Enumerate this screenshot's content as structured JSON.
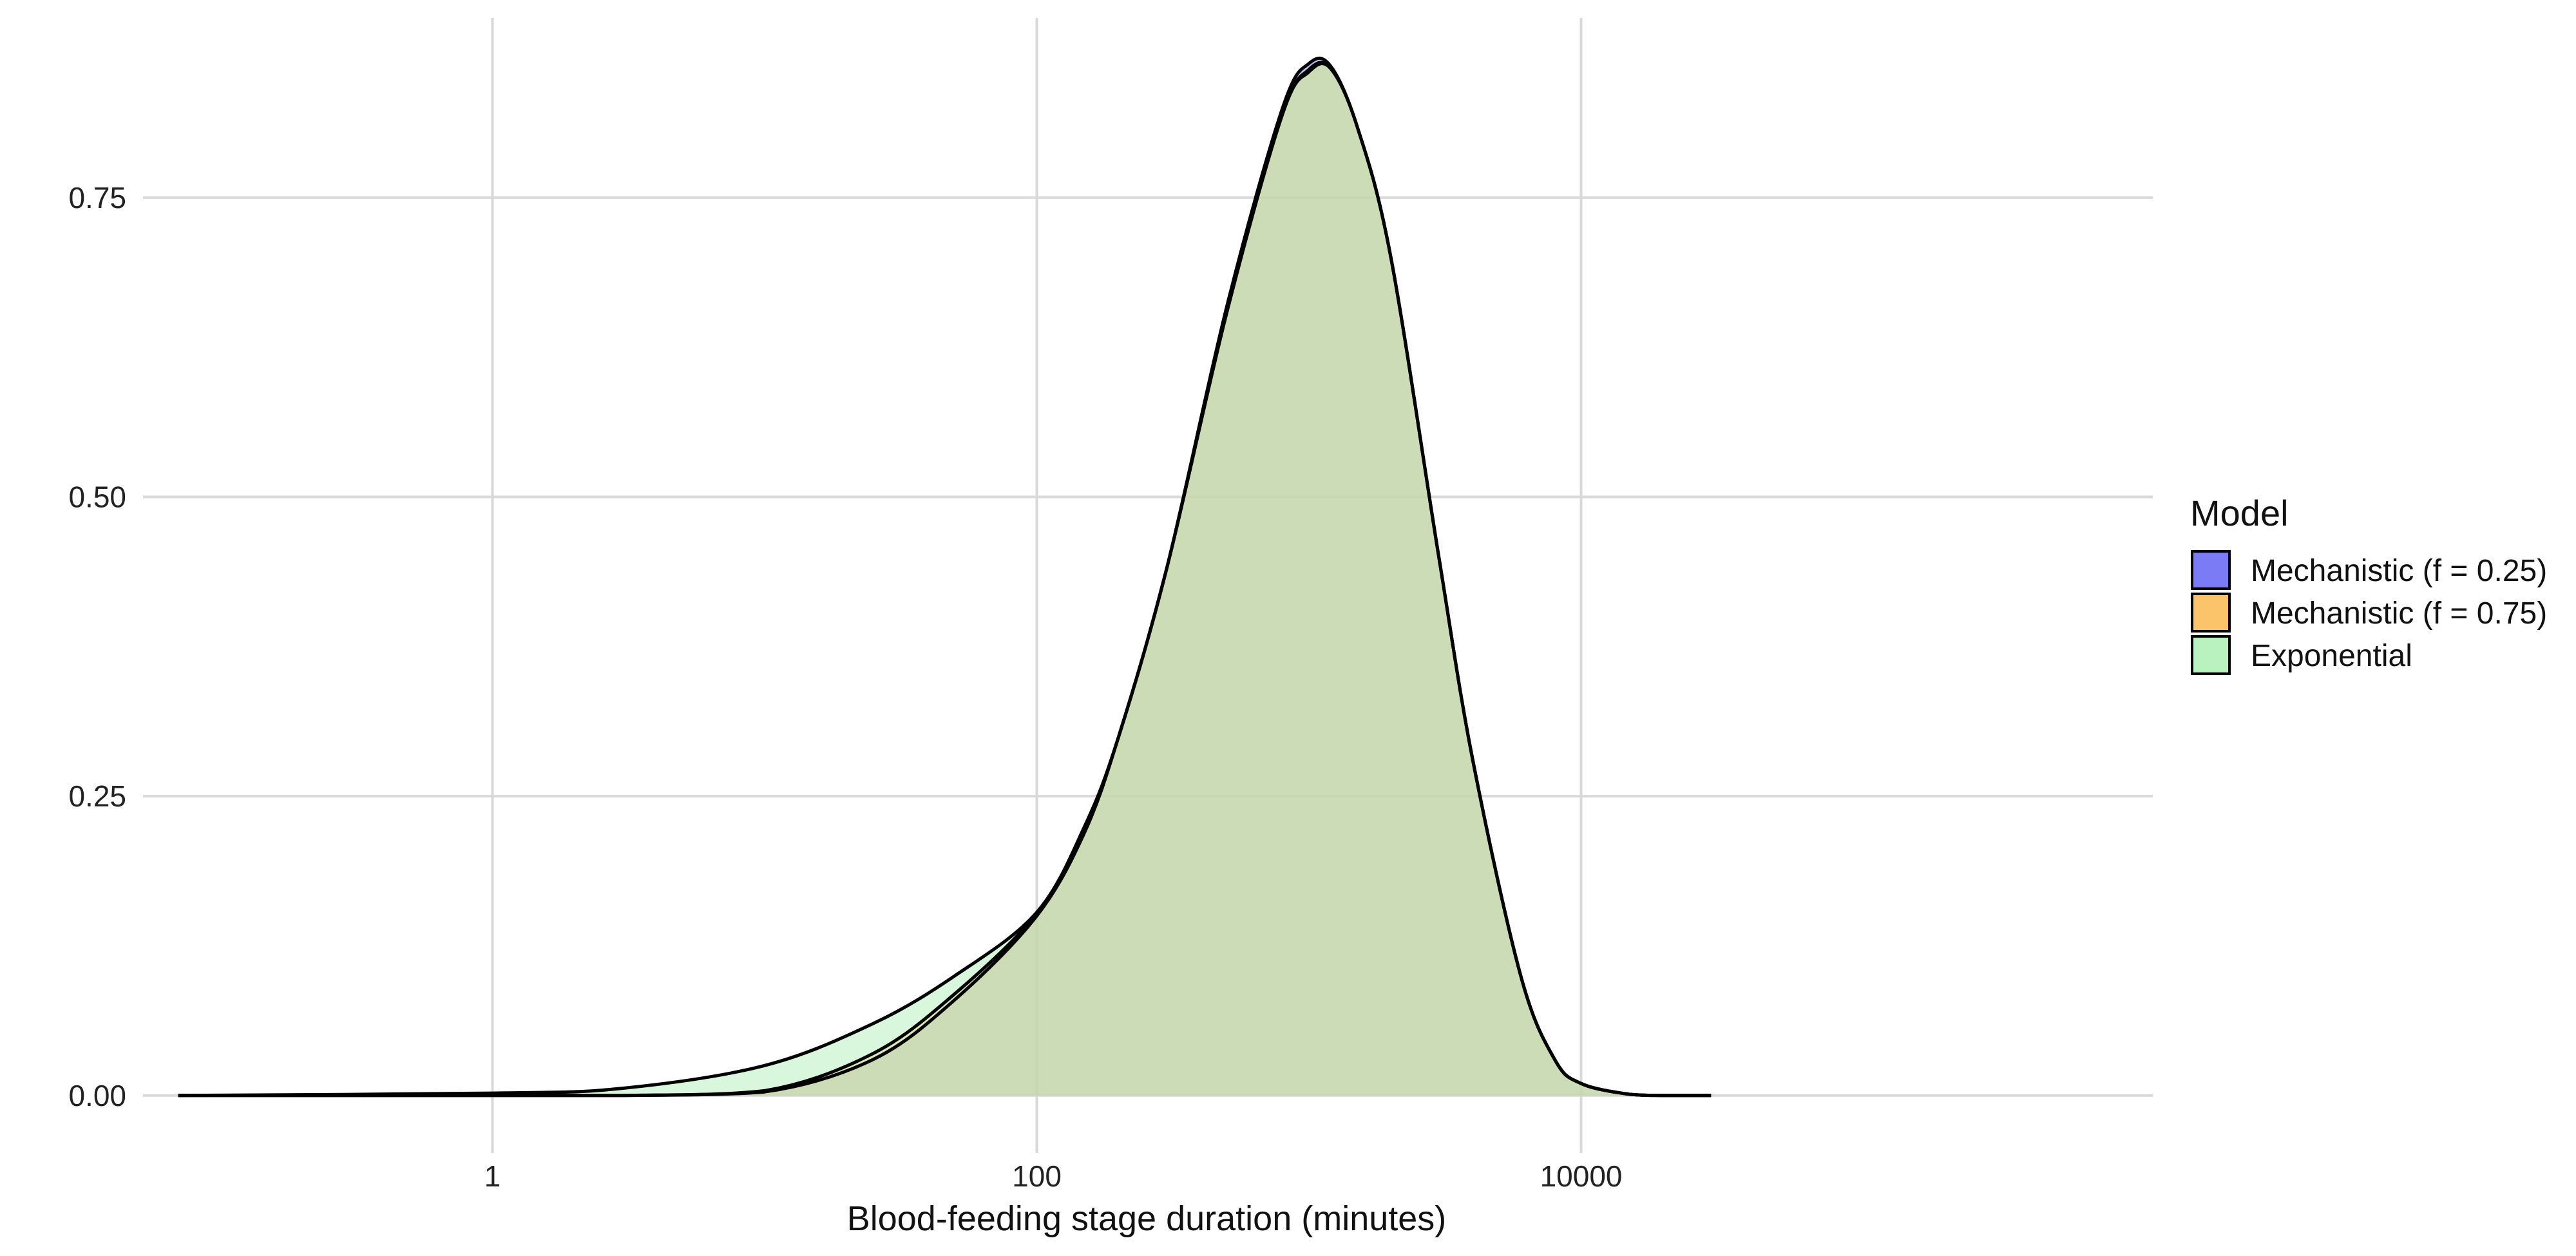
{
  "chart_data": {
    "type": "area",
    "xlabel": "Blood-feeding stage duration (minutes)",
    "ylabel": "",
    "x_scale": "log10",
    "xlim": [
      0.052,
      1260000
    ],
    "ylim": [
      -0.048,
      0.9
    ],
    "x_ticks": [
      {
        "value": 1,
        "label": "1"
      },
      {
        "value": 100,
        "label": "100"
      },
      {
        "value": 10000,
        "label": "10000"
      }
    ],
    "y_ticks": [
      {
        "value": 0.0,
        "label": "0.00"
      },
      {
        "value": 0.25,
        "label": "0.25"
      },
      {
        "value": 0.5,
        "label": "0.50"
      },
      {
        "value": 0.75,
        "label": "0.75"
      }
    ],
    "grid": true,
    "legend_title": "Model",
    "legend_position": "right",
    "series": [
      {
        "name": "Mechanistic (f = 0.25)",
        "color": "#7b7bf5",
        "x": [
          0.07,
          1,
          3,
          10,
          25,
          50,
          100,
          150,
          200,
          300,
          500,
          800,
          1000,
          1200,
          1500,
          2000,
          3000,
          4000,
          6000,
          8000,
          10000,
          15000,
          20000,
          30000
        ],
        "y": [
          0.0,
          0.0,
          0.0,
          0.003,
          0.03,
          0.08,
          0.15,
          0.22,
          0.3,
          0.44,
          0.66,
          0.825,
          0.862,
          0.86,
          0.81,
          0.7,
          0.45,
          0.28,
          0.1,
          0.03,
          0.01,
          0.001,
          0.0,
          0.0
        ]
      },
      {
        "name": "Mechanistic (f = 0.75)",
        "color": "#fcc46a",
        "x": [
          0.07,
          1,
          3,
          10,
          25,
          50,
          100,
          150,
          200,
          300,
          500,
          800,
          1000,
          1200,
          1500,
          2000,
          3000,
          4000,
          6000,
          8000,
          10000,
          15000,
          20000,
          30000
        ],
        "y": [
          0.0,
          0.0,
          0.0,
          0.004,
          0.035,
          0.085,
          0.152,
          0.222,
          0.3,
          0.44,
          0.655,
          0.82,
          0.857,
          0.858,
          0.81,
          0.7,
          0.45,
          0.28,
          0.1,
          0.03,
          0.01,
          0.001,
          0.0,
          0.0
        ]
      },
      {
        "name": "Exponential",
        "color": "#b9f1bf",
        "x": [
          0.07,
          1,
          3,
          10,
          25,
          50,
          100,
          150,
          200,
          300,
          500,
          800,
          1000,
          1200,
          1500,
          2000,
          3000,
          4000,
          6000,
          8000,
          10000,
          15000,
          20000,
          30000
        ],
        "y": [
          0.0,
          0.002,
          0.006,
          0.025,
          0.06,
          0.1,
          0.153,
          0.225,
          0.3,
          0.44,
          0.655,
          0.82,
          0.855,
          0.858,
          0.81,
          0.7,
          0.45,
          0.28,
          0.1,
          0.03,
          0.01,
          0.001,
          0.0,
          0.0
        ]
      }
    ]
  }
}
